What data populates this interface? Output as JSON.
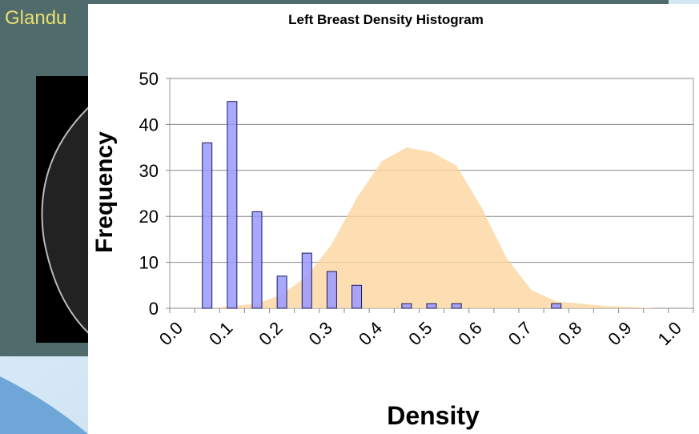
{
  "slide": {
    "title": "Glandu"
  },
  "chart_data": {
    "type": "bar",
    "title": "Left Breast Density Histogram",
    "x_label": "Density",
    "y_label": "Frequency",
    "categories": [
      "0.0",
      null,
      "0.1",
      null,
      "0.2",
      null,
      "0.3",
      null,
      "0.4",
      null,
      "0.5",
      null,
      "0.6",
      null,
      "0.7",
      null,
      "0.8",
      null,
      "0.9",
      null,
      "1.0"
    ],
    "series": [
      {
        "type": "bar",
        "color": "#9999ff",
        "values": [
          0,
          36,
          45,
          21,
          7,
          12,
          8,
          5,
          0,
          1,
          1,
          1,
          0,
          0,
          0,
          1,
          0,
          0,
          0,
          0,
          0
        ]
      },
      {
        "type": "area",
        "color": "#fcd6a0",
        "values": [
          0,
          0,
          0.5,
          1,
          3,
          7,
          14,
          24,
          32,
          35,
          34,
          31,
          22,
          11,
          4,
          1.5,
          1,
          0.5,
          0.3,
          0,
          0
        ]
      }
    ],
    "ylim": [
      0,
      50
    ],
    "yticks": [
      0,
      10,
      20,
      30,
      40,
      50
    ],
    "grid": true
  }
}
